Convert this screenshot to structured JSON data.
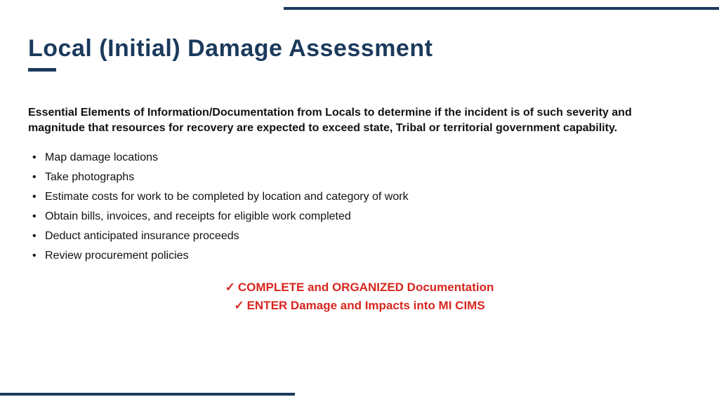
{
  "theme": {
    "accent": "#1b3a5c",
    "emphasis": "#d7261e",
    "text": "#111111",
    "background": "#ffffff",
    "title_fontsize": 34,
    "body_fontsize": 16,
    "check_fontsize": 17,
    "top_rule_width": 620,
    "bottom_rule_width": 420,
    "rule_thickness": 4
  },
  "slide": {
    "title": "Local (Initial) Damage Assessment",
    "intro": "Essential Elements of Information/Documentation from Locals to determine if the incident is of such severity and magnitude that resources for recovery are expected to exceed state, Tribal or territorial government capability.",
    "bullets": [
      "Map damage locations",
      "Take photographs",
      "Estimate costs for work to be completed by location and category of work",
      "Obtain bills, invoices, and receipts for eligible work completed",
      "Deduct anticipated insurance proceeds",
      "Review procurement policies"
    ],
    "checks": [
      "COMPLETE and ORGANIZED Documentation",
      "ENTER Damage and Impacts into MI CIMS"
    ]
  }
}
